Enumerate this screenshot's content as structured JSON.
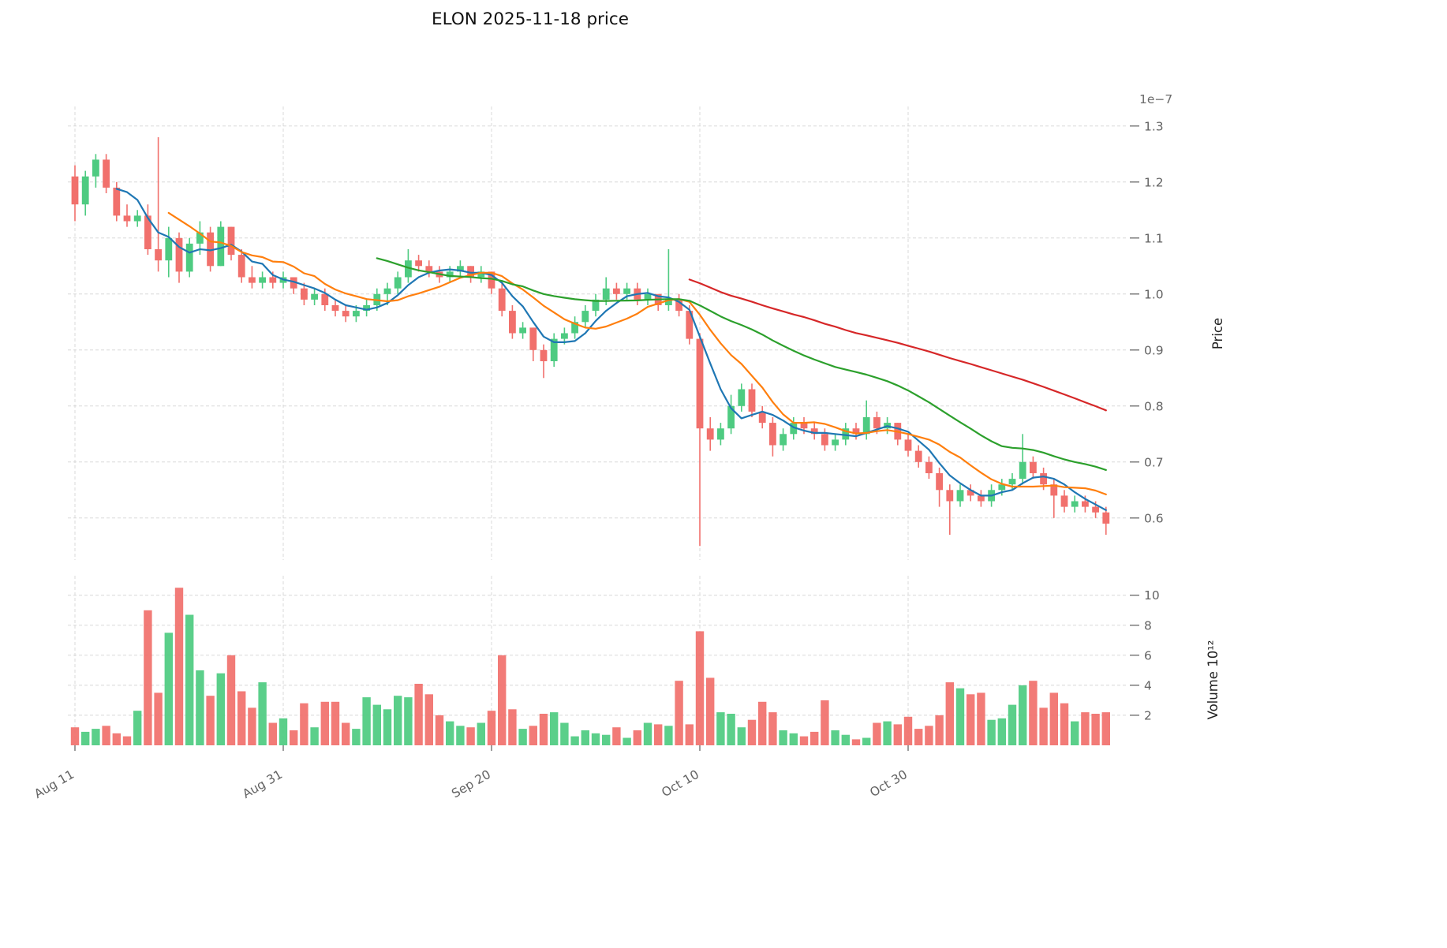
{
  "chart_data": {
    "type": "candlestick",
    "title": "ELON  2025-11-18  price",
    "price_axis": {
      "label": "Price",
      "scale_note": "1e−7",
      "ticks": [
        0.6,
        0.7,
        0.8,
        0.9,
        1.0,
        1.1,
        1.2,
        1.3
      ],
      "range": [
        0.525,
        1.335
      ]
    },
    "volume_axis": {
      "label": "Volume  10¹²",
      "ticks": [
        2,
        4,
        6,
        8,
        10
      ],
      "range": [
        0,
        11.3
      ]
    },
    "x_ticks": [
      {
        "label": "Aug 11",
        "index": 0
      },
      {
        "label": "Aug 31",
        "index": 20
      },
      {
        "label": "Sep 20",
        "index": 40
      },
      {
        "label": "Oct 10",
        "index": 60
      },
      {
        "label": "Oct 30",
        "index": 80
      }
    ],
    "colors": {
      "up": "#4ecb81",
      "down": "#f1706c"
    },
    "moving_averages": [
      {
        "name": "MA5",
        "window": 5,
        "color": "#1f77b4"
      },
      {
        "name": "MA10",
        "window": 10,
        "color": "#ff7f0e"
      },
      {
        "name": "MA30",
        "window": 30,
        "color": "#2ca02c"
      },
      {
        "name": "MA60",
        "window": 60,
        "color": "#d62728"
      }
    ],
    "grid": true,
    "legend": "none",
    "candles_columns": [
      "date",
      "open",
      "high",
      "low",
      "close",
      "volume"
    ],
    "candles": [
      [
        "08-11",
        1.21,
        1.23,
        1.13,
        1.16,
        1.2
      ],
      [
        "08-12",
        1.16,
        1.22,
        1.14,
        1.21,
        0.9
      ],
      [
        "08-13",
        1.21,
        1.25,
        1.19,
        1.24,
        1.1
      ],
      [
        "08-14",
        1.24,
        1.25,
        1.18,
        1.19,
        1.3
      ],
      [
        "08-15",
        1.19,
        1.2,
        1.13,
        1.14,
        0.8
      ],
      [
        "08-16",
        1.14,
        1.16,
        1.12,
        1.13,
        0.6
      ],
      [
        "08-17",
        1.13,
        1.15,
        1.12,
        1.14,
        2.3
      ],
      [
        "08-18",
        1.14,
        1.16,
        1.07,
        1.08,
        9.0
      ],
      [
        "08-19",
        1.08,
        1.28,
        1.04,
        1.06,
        3.5
      ],
      [
        "08-20",
        1.06,
        1.12,
        1.03,
        1.1,
        7.5
      ],
      [
        "08-21",
        1.1,
        1.11,
        1.02,
        1.04,
        10.5
      ],
      [
        "08-22",
        1.04,
        1.1,
        1.03,
        1.09,
        8.7
      ],
      [
        "08-23",
        1.09,
        1.13,
        1.07,
        1.11,
        5.0
      ],
      [
        "08-24",
        1.11,
        1.12,
        1.04,
        1.05,
        3.3
      ],
      [
        "08-25",
        1.05,
        1.13,
        1.05,
        1.12,
        4.8
      ],
      [
        "08-26",
        1.12,
        1.12,
        1.06,
        1.07,
        6.0
      ],
      [
        "08-27",
        1.07,
        1.08,
        1.02,
        1.03,
        3.6
      ],
      [
        "08-28",
        1.03,
        1.05,
        1.01,
        1.02,
        2.5
      ],
      [
        "08-29",
        1.02,
        1.04,
        1.01,
        1.03,
        4.2
      ],
      [
        "08-30",
        1.03,
        1.04,
        1.01,
        1.02,
        1.5
      ],
      [
        "08-31",
        1.02,
        1.04,
        1.01,
        1.03,
        1.8
      ],
      [
        "09-01",
        1.03,
        1.03,
        1.0,
        1.01,
        1.0
      ],
      [
        "09-02",
        1.01,
        1.02,
        0.98,
        0.99,
        2.8
      ],
      [
        "09-03",
        0.99,
        1.01,
        0.98,
        1.0,
        1.2
      ],
      [
        "09-04",
        1.0,
        1.01,
        0.97,
        0.98,
        2.9
      ],
      [
        "09-05",
        0.98,
        0.99,
        0.96,
        0.97,
        2.9
      ],
      [
        "09-06",
        0.97,
        0.98,
        0.95,
        0.96,
        1.5
      ],
      [
        "09-07",
        0.96,
        0.98,
        0.95,
        0.97,
        1.1
      ],
      [
        "09-08",
        0.97,
        0.99,
        0.96,
        0.98,
        3.2
      ],
      [
        "09-09",
        0.98,
        1.01,
        0.97,
        1.0,
        2.7
      ],
      [
        "09-10",
        1.0,
        1.02,
        0.98,
        1.01,
        2.4
      ],
      [
        "09-11",
        1.01,
        1.04,
        1.0,
        1.03,
        3.3
      ],
      [
        "09-12",
        1.03,
        1.08,
        1.02,
        1.06,
        3.2
      ],
      [
        "09-13",
        1.06,
        1.07,
        1.04,
        1.05,
        4.1
      ],
      [
        "09-14",
        1.05,
        1.06,
        1.03,
        1.04,
        3.4
      ],
      [
        "09-15",
        1.04,
        1.05,
        1.02,
        1.03,
        2.0
      ],
      [
        "09-16",
        1.03,
        1.05,
        1.02,
        1.04,
        1.6
      ],
      [
        "09-17",
        1.04,
        1.06,
        1.03,
        1.05,
        1.3
      ],
      [
        "09-18",
        1.05,
        1.05,
        1.02,
        1.03,
        1.2
      ],
      [
        "09-19",
        1.03,
        1.05,
        1.02,
        1.04,
        1.5
      ],
      [
        "09-20",
        1.04,
        1.04,
        1.0,
        1.01,
        2.3
      ],
      [
        "09-21",
        1.01,
        1.02,
        0.96,
        0.97,
        6.0
      ],
      [
        "09-22",
        0.97,
        0.98,
        0.92,
        0.93,
        2.4
      ],
      [
        "09-23",
        0.93,
        0.95,
        0.92,
        0.94,
        1.1
      ],
      [
        "09-24",
        0.94,
        0.94,
        0.88,
        0.9,
        1.3
      ],
      [
        "09-25",
        0.9,
        0.91,
        0.85,
        0.88,
        2.1
      ],
      [
        "09-26",
        0.88,
        0.93,
        0.87,
        0.92,
        2.2
      ],
      [
        "09-27",
        0.92,
        0.94,
        0.91,
        0.93,
        1.5
      ],
      [
        "09-28",
        0.93,
        0.96,
        0.92,
        0.95,
        0.6
      ],
      [
        "09-29",
        0.95,
        0.98,
        0.94,
        0.97,
        1.0
      ],
      [
        "09-30",
        0.97,
        1.0,
        0.96,
        0.99,
        0.8
      ],
      [
        "10-01",
        0.99,
        1.03,
        0.98,
        1.01,
        0.7
      ],
      [
        "10-02",
        1.01,
        1.02,
        0.99,
        1.0,
        1.2
      ],
      [
        "10-03",
        1.0,
        1.02,
        0.99,
        1.01,
        0.5
      ],
      [
        "10-04",
        1.01,
        1.02,
        0.98,
        0.99,
        1.0
      ],
      [
        "10-05",
        0.99,
        1.01,
        0.98,
        1.0,
        1.5
      ],
      [
        "10-06",
        1.0,
        1.0,
        0.97,
        0.98,
        1.4
      ],
      [
        "10-07",
        0.98,
        1.08,
        0.97,
        0.99,
        1.3
      ],
      [
        "10-08",
        0.99,
        1.0,
        0.96,
        0.97,
        4.3
      ],
      [
        "10-09",
        0.97,
        0.98,
        0.91,
        0.92,
        1.4
      ],
      [
        "10-10",
        0.92,
        0.93,
        0.55,
        0.76,
        7.6
      ],
      [
        "10-11",
        0.76,
        0.78,
        0.72,
        0.74,
        4.5
      ],
      [
        "10-12",
        0.74,
        0.77,
        0.73,
        0.76,
        2.2
      ],
      [
        "10-13",
        0.76,
        0.82,
        0.75,
        0.8,
        2.1
      ],
      [
        "10-14",
        0.8,
        0.84,
        0.79,
        0.83,
        1.2
      ],
      [
        "10-15",
        0.83,
        0.84,
        0.78,
        0.79,
        1.7
      ],
      [
        "10-16",
        0.79,
        0.8,
        0.76,
        0.77,
        2.9
      ],
      [
        "10-17",
        0.77,
        0.78,
        0.71,
        0.73,
        2.2
      ],
      [
        "10-18",
        0.73,
        0.76,
        0.72,
        0.75,
        1.0
      ],
      [
        "10-19",
        0.75,
        0.78,
        0.74,
        0.77,
        0.8
      ],
      [
        "10-20",
        0.77,
        0.78,
        0.75,
        0.76,
        0.6
      ],
      [
        "10-21",
        0.76,
        0.77,
        0.74,
        0.75,
        0.9
      ],
      [
        "10-22",
        0.75,
        0.76,
        0.72,
        0.73,
        3.0
      ],
      [
        "10-23",
        0.73,
        0.75,
        0.72,
        0.74,
        1.0
      ],
      [
        "10-24",
        0.74,
        0.77,
        0.73,
        0.76,
        0.7
      ],
      [
        "10-25",
        0.76,
        0.77,
        0.74,
        0.75,
        0.4
      ],
      [
        "10-26",
        0.75,
        0.81,
        0.74,
        0.78,
        0.5
      ],
      [
        "10-27",
        0.78,
        0.79,
        0.75,
        0.76,
        1.5
      ],
      [
        "10-28",
        0.76,
        0.78,
        0.75,
        0.77,
        1.6
      ],
      [
        "10-29",
        0.77,
        0.77,
        0.73,
        0.74,
        1.4
      ],
      [
        "10-30",
        0.74,
        0.75,
        0.71,
        0.72,
        1.9
      ],
      [
        "10-31",
        0.72,
        0.73,
        0.69,
        0.7,
        1.1
      ],
      [
        "11-01",
        0.7,
        0.71,
        0.67,
        0.68,
        1.3
      ],
      [
        "11-02",
        0.68,
        0.69,
        0.62,
        0.65,
        2.0
      ],
      [
        "11-03",
        0.65,
        0.66,
        0.57,
        0.63,
        4.2
      ],
      [
        "11-04",
        0.63,
        0.66,
        0.62,
        0.65,
        3.8
      ],
      [
        "11-05",
        0.65,
        0.66,
        0.63,
        0.64,
        3.4
      ],
      [
        "11-06",
        0.64,
        0.65,
        0.62,
        0.63,
        3.5
      ],
      [
        "11-07",
        0.63,
        0.66,
        0.62,
        0.65,
        1.7
      ],
      [
        "11-08",
        0.65,
        0.67,
        0.64,
        0.66,
        1.8
      ],
      [
        "11-09",
        0.66,
        0.68,
        0.65,
        0.67,
        2.7
      ],
      [
        "11-10",
        0.67,
        0.75,
        0.66,
        0.7,
        4.0
      ],
      [
        "11-11",
        0.7,
        0.71,
        0.67,
        0.68,
        4.3
      ],
      [
        "11-12",
        0.68,
        0.69,
        0.65,
        0.66,
        2.5
      ],
      [
        "11-13",
        0.66,
        0.67,
        0.6,
        0.64,
        3.5
      ],
      [
        "11-14",
        0.64,
        0.65,
        0.61,
        0.62,
        2.8
      ],
      [
        "11-15",
        0.62,
        0.64,
        0.61,
        0.63,
        1.6
      ],
      [
        "11-16",
        0.63,
        0.64,
        0.61,
        0.62,
        2.2
      ],
      [
        "11-17",
        0.62,
        0.63,
        0.6,
        0.61,
        2.1
      ],
      [
        "11-18",
        0.61,
        0.62,
        0.57,
        0.59,
        2.2
      ]
    ]
  }
}
